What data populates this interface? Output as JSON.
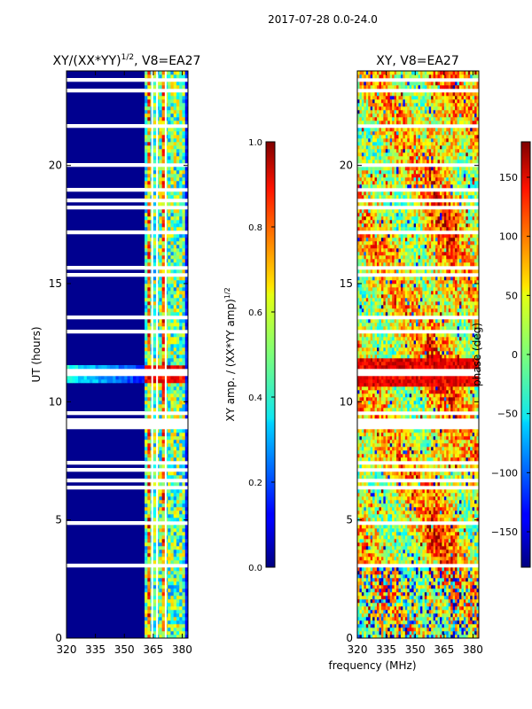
{
  "figure": {
    "suptitle": "2017-07-28 0.0-24.0",
    "shared_xlabel": "frequency (MHz)"
  },
  "chart_data": [
    {
      "type": "heatmap",
      "title": "XY/(XX*YY)",
      "title_power": "1/2",
      "title_suffix": ", V8=EA27",
      "xlim": [
        320,
        383
      ],
      "xticks": [
        "320",
        "335",
        "350",
        "365",
        "380"
      ],
      "ylabel": "UT (hours)",
      "ylim": [
        0,
        24
      ],
      "yticks": [
        "0",
        "5",
        "10",
        "15",
        "20"
      ],
      "colorbar": {
        "label": "XY amp. / (XX*YY amp)",
        "label_power": "1/2",
        "range": [
          0.0,
          1.0
        ],
        "ticks": [
          "0.0",
          "0.2",
          "0.4",
          "0.6",
          "0.8",
          "1.0"
        ],
        "colormap": "jet"
      },
      "description": "Normalized XY amplitude vs UT and frequency; mostly low (~0.05) below 360 MHz, elevated (0.3-0.9) between ~360 and 380 MHz, strong band near 11 UT."
    },
    {
      "type": "heatmap",
      "title": "XY, V8=EA27",
      "xlim": [
        320,
        383
      ],
      "xticks": [
        "320",
        "335",
        "350",
        "365",
        "380"
      ],
      "ylim": [
        0,
        24
      ],
      "yticks": [
        "0",
        "5",
        "10",
        "15",
        "20"
      ],
      "colorbar": {
        "label": "phase (deg)",
        "range": [
          -180,
          180
        ],
        "ticks": [
          "150",
          "100",
          "50",
          "0",
          "−50",
          "−100",
          "−150"
        ],
        "colormap": "jet"
      },
      "description": "XY phase vs UT and frequency; noisy wrapped phase with yellow/orange structure, strong red band near 11 UT."
    }
  ]
}
